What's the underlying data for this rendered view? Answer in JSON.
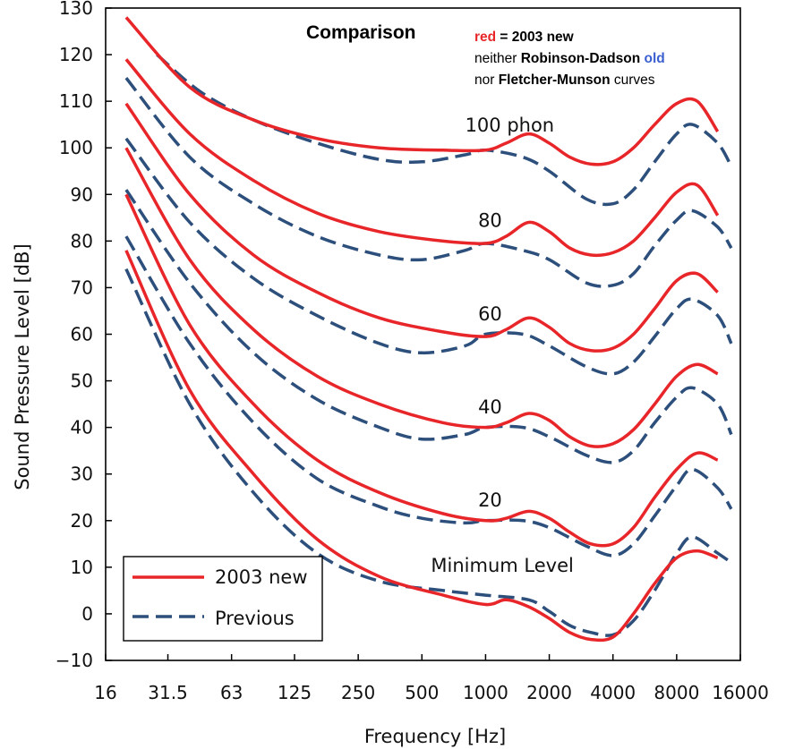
{
  "chart_data": {
    "type": "line",
    "title": "Comparison",
    "notes": {
      "line1_red": "red",
      "line1_rest": " = 2003 new",
      "line2_a": "neither ",
      "line2_rd": "Robinson-Dadson",
      "line2_space": " ",
      "line2_old": "old",
      "line3_a": "nor ",
      "line3_fm": "Fletcher-Munson",
      "line3_b": " curves"
    },
    "xlabel": "Frequency [Hz]",
    "ylabel": "Sound Pressure Level [dB]",
    "x_scale": "log2",
    "xlim": [
      16,
      16000
    ],
    "ylim": [
      -10,
      130
    ],
    "x_ticks": [
      {
        "value": 16,
        "label": "16"
      },
      {
        "value": 31.5,
        "label": "31.5"
      },
      {
        "value": 63,
        "label": "63"
      },
      {
        "value": 125,
        "label": "125"
      },
      {
        "value": 250,
        "label": "250"
      },
      {
        "value": 500,
        "label": "500"
      },
      {
        "value": 1000,
        "label": "1000"
      },
      {
        "value": 2000,
        "label": "2000"
      },
      {
        "value": 4000,
        "label": "4000"
      },
      {
        "value": 8000,
        "label": "8000"
      },
      {
        "value": 16000,
        "label": "16000"
      }
    ],
    "y_ticks": [
      {
        "value": -10,
        "label": "−10"
      },
      {
        "value": 0,
        "label": "0"
      },
      {
        "value": 10,
        "label": "10"
      },
      {
        "value": 20,
        "label": "20"
      },
      {
        "value": 30,
        "label": "30"
      },
      {
        "value": 40,
        "label": "40"
      },
      {
        "value": 50,
        "label": "50"
      },
      {
        "value": 60,
        "label": "60"
      },
      {
        "value": 70,
        "label": "70"
      },
      {
        "value": 80,
        "label": "80"
      },
      {
        "value": 90,
        "label": "90"
      },
      {
        "value": 100,
        "label": "100"
      },
      {
        "value": 110,
        "label": "110"
      },
      {
        "value": 120,
        "label": "120"
      },
      {
        "value": 130,
        "label": "130"
      }
    ],
    "grid": false,
    "legend": {
      "placement": "bottom-left",
      "entries": [
        {
          "label": "2003 new",
          "color": "#e8262a",
          "style": "solid"
        },
        {
          "label": "Previous",
          "color": "#2d4f7c",
          "style": "dashed"
        }
      ]
    },
    "colors": {
      "new": "#e8262a",
      "previous": "#2d4f7c",
      "old_word": "#3a5fd0"
    },
    "curve_labels": [
      {
        "text": "100 phon",
        "x": 1300,
        "y": 103.5
      },
      {
        "text": "80",
        "x": 1050,
        "y": 83
      },
      {
        "text": "60",
        "x": 1050,
        "y": 63
      },
      {
        "text": "40",
        "x": 1050,
        "y": 43
      },
      {
        "text": "20",
        "x": 1050,
        "y": 23
      },
      {
        "text": "Minimum Level",
        "x": 1200,
        "y": 9
      }
    ],
    "series": [
      {
        "group": "new",
        "level": "100",
        "points": [
          [
            20,
            128
          ],
          [
            40,
            113
          ],
          [
            80,
            106
          ],
          [
            160,
            102
          ],
          [
            315,
            100
          ],
          [
            630,
            99.5
          ],
          [
            1000,
            99.5
          ],
          [
            1250,
            101
          ],
          [
            1600,
            103
          ],
          [
            2000,
            101
          ],
          [
            2500,
            98
          ],
          [
            3150,
            96.5
          ],
          [
            4000,
            97
          ],
          [
            5000,
            100
          ],
          [
            6300,
            105
          ],
          [
            8000,
            109.5
          ],
          [
            10000,
            110
          ],
          [
            12500,
            103.5
          ]
        ]
      },
      {
        "group": "new",
        "level": "80",
        "points": [
          [
            20,
            119
          ],
          [
            40,
            103
          ],
          [
            80,
            93
          ],
          [
            160,
            86
          ],
          [
            315,
            82
          ],
          [
            630,
            80
          ],
          [
            1000,
            79.5
          ],
          [
            1250,
            81
          ],
          [
            1600,
            84
          ],
          [
            2000,
            82
          ],
          [
            2500,
            78.5
          ],
          [
            3150,
            77
          ],
          [
            4000,
            77.5
          ],
          [
            5000,
            80
          ],
          [
            6300,
            85
          ],
          [
            8000,
            90.5
          ],
          [
            10000,
            92
          ],
          [
            12500,
            85.5
          ]
        ]
      },
      {
        "group": "new",
        "level": "60",
        "points": [
          [
            20,
            109.5
          ],
          [
            40,
            90
          ],
          [
            80,
            77
          ],
          [
            160,
            69
          ],
          [
            315,
            63.5
          ],
          [
            630,
            60.5
          ],
          [
            1000,
            59.5
          ],
          [
            1250,
            61
          ],
          [
            1600,
            63.5
          ],
          [
            2000,
            61.5
          ],
          [
            2500,
            58
          ],
          [
            3150,
            56.5
          ],
          [
            4000,
            57
          ],
          [
            5000,
            60
          ],
          [
            6300,
            65.5
          ],
          [
            8000,
            71.5
          ],
          [
            10000,
            73
          ],
          [
            12500,
            69
          ]
        ]
      },
      {
        "group": "new",
        "level": "40",
        "points": [
          [
            20,
            100
          ],
          [
            40,
            76
          ],
          [
            80,
            61
          ],
          [
            160,
            51
          ],
          [
            315,
            45
          ],
          [
            630,
            41
          ],
          [
            1000,
            40
          ],
          [
            1250,
            41
          ],
          [
            1600,
            43
          ],
          [
            2000,
            41.5
          ],
          [
            2500,
            38
          ],
          [
            3150,
            36
          ],
          [
            4000,
            36.5
          ],
          [
            5000,
            39.5
          ],
          [
            6300,
            45
          ],
          [
            8000,
            51
          ],
          [
            10000,
            53.5
          ],
          [
            12500,
            51.5
          ]
        ]
      },
      {
        "group": "new",
        "level": "20",
        "points": [
          [
            20,
            90
          ],
          [
            40,
            62
          ],
          [
            80,
            45
          ],
          [
            160,
            33
          ],
          [
            315,
            26
          ],
          [
            630,
            21.5
          ],
          [
            1000,
            20
          ],
          [
            1250,
            20.5
          ],
          [
            1600,
            22
          ],
          [
            2000,
            20.5
          ],
          [
            2500,
            17.5
          ],
          [
            3150,
            15
          ],
          [
            4000,
            15
          ],
          [
            5000,
            18.5
          ],
          [
            6300,
            25
          ],
          [
            8000,
            31
          ],
          [
            10000,
            34.5
          ],
          [
            12500,
            33
          ]
        ]
      },
      {
        "group": "new",
        "level": "min",
        "points": [
          [
            20,
            78
          ],
          [
            40,
            48
          ],
          [
            80,
            30
          ],
          [
            160,
            16
          ],
          [
            315,
            8
          ],
          [
            630,
            4
          ],
          [
            1000,
            2
          ],
          [
            1250,
            3
          ],
          [
            1600,
            1.5
          ],
          [
            2000,
            -1
          ],
          [
            2500,
            -4
          ],
          [
            3150,
            -5.5
          ],
          [
            4000,
            -5
          ],
          [
            5000,
            0
          ],
          [
            6300,
            6.5
          ],
          [
            8000,
            12
          ],
          [
            10000,
            13.5
          ],
          [
            12500,
            12
          ]
        ]
      },
      {
        "group": "previous",
        "level": "100",
        "points": [
          [
            28,
            120
          ],
          [
            45,
            112
          ],
          [
            80,
            106
          ],
          [
            160,
            101
          ],
          [
            315,
            97.5
          ],
          [
            500,
            97
          ],
          [
            800,
            98.5
          ],
          [
            1000,
            99.5
          ],
          [
            1500,
            98
          ],
          [
            2000,
            95
          ],
          [
            3000,
            89
          ],
          [
            4000,
            88
          ],
          [
            5000,
            91
          ],
          [
            6300,
            97
          ],
          [
            8000,
            103
          ],
          [
            9500,
            105
          ],
          [
            12500,
            101
          ],
          [
            14500,
            96
          ]
        ]
      },
      {
        "group": "previous",
        "level": "80",
        "points": [
          [
            20,
            115
          ],
          [
            40,
            98
          ],
          [
            80,
            88
          ],
          [
            160,
            81
          ],
          [
            315,
            77
          ],
          [
            500,
            76
          ],
          [
            800,
            78
          ],
          [
            1000,
            79.5
          ],
          [
            1500,
            78
          ],
          [
            2000,
            76
          ],
          [
            3000,
            71
          ],
          [
            4000,
            70.5
          ],
          [
            5000,
            73
          ],
          [
            6300,
            79
          ],
          [
            8000,
            84.5
          ],
          [
            9500,
            86.5
          ],
          [
            12500,
            83
          ],
          [
            14500,
            78.5
          ]
        ]
      },
      {
        "group": "previous",
        "level": "60",
        "points": [
          [
            20,
            102
          ],
          [
            40,
            84
          ],
          [
            80,
            72
          ],
          [
            160,
            64
          ],
          [
            315,
            58
          ],
          [
            500,
            56
          ],
          [
            800,
            57.5
          ],
          [
            1000,
            60
          ],
          [
            1500,
            60
          ],
          [
            2000,
            57.5
          ],
          [
            3000,
            53
          ],
          [
            4000,
            51.5
          ],
          [
            5000,
            54
          ],
          [
            6300,
            59.5
          ],
          [
            8000,
            65.5
          ],
          [
            9500,
            67.5
          ],
          [
            12500,
            64
          ],
          [
            14500,
            58
          ]
        ]
      },
      {
        "group": "previous",
        "level": "40",
        "points": [
          [
            20,
            91
          ],
          [
            40,
            71
          ],
          [
            80,
            56
          ],
          [
            160,
            46
          ],
          [
            315,
            40
          ],
          [
            500,
            37.5
          ],
          [
            800,
            38.5
          ],
          [
            1000,
            40
          ],
          [
            1500,
            40
          ],
          [
            2000,
            38
          ],
          [
            3000,
            34
          ],
          [
            4000,
            32.5
          ],
          [
            5000,
            35
          ],
          [
            6300,
            41
          ],
          [
            8000,
            46.5
          ],
          [
            9500,
            48.5
          ],
          [
            12500,
            45
          ],
          [
            14500,
            38.5
          ]
        ]
      },
      {
        "group": "previous",
        "level": "20",
        "points": [
          [
            20,
            81
          ],
          [
            40,
            58
          ],
          [
            80,
            41
          ],
          [
            160,
            29
          ],
          [
            315,
            23
          ],
          [
            500,
            20.5
          ],
          [
            800,
            19.5
          ],
          [
            1000,
            20
          ],
          [
            1500,
            20
          ],
          [
            2000,
            18.5
          ],
          [
            3000,
            14.5
          ],
          [
            4000,
            12.5
          ],
          [
            5000,
            15
          ],
          [
            6300,
            21
          ],
          [
            8000,
            27.5
          ],
          [
            9500,
            31
          ],
          [
            12500,
            27
          ],
          [
            14500,
            22.5
          ]
        ]
      },
      {
        "group": "previous",
        "level": "min",
        "points": [
          [
            20,
            74
          ],
          [
            40,
            45
          ],
          [
            80,
            26
          ],
          [
            160,
            13
          ],
          [
            315,
            7
          ],
          [
            630,
            5
          ],
          [
            1000,
            4
          ],
          [
            1600,
            3
          ],
          [
            2000,
            0.5
          ],
          [
            2500,
            -2.5
          ],
          [
            3150,
            -4
          ],
          [
            4000,
            -4.5
          ],
          [
            5000,
            -1.5
          ],
          [
            6300,
            5
          ],
          [
            8000,
            13
          ],
          [
            9500,
            16.5
          ],
          [
            12500,
            13
          ],
          [
            14500,
            11
          ]
        ]
      }
    ]
  }
}
